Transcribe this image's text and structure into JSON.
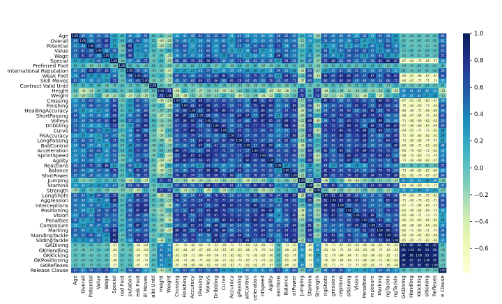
{
  "chart_data": {
    "type": "heatmap",
    "title": "",
    "xlabel": "",
    "ylabel": "",
    "labels": [
      "Age",
      "Overall",
      "Potential",
      "Value",
      "Wage",
      "Special",
      "Preferred Foot",
      "International Reputation",
      "Weak Foot",
      "Skill Moves",
      "Contract Valid Until",
      "Height",
      "Weight",
      "Crossing",
      "Finishing",
      "HeadingAccuracy",
      "ShortPassing",
      "Volleys",
      "Dribbling",
      "Curve",
      "FKAccuracy",
      "LongPassing",
      "BallControl",
      "Acceleration",
      "SprintSpeed",
      "Agility",
      "Reactions",
      "Balance",
      "ShotPower",
      "Jumping",
      "Stamina",
      "Strength",
      "LongShots",
      "Aggression",
      "Interceptions",
      "Positioning",
      "Vision",
      "Penalties",
      "Composure",
      "Marking",
      "StandingTackle",
      "SlidingTackle",
      "GKDiving",
      "GKHandling",
      "GKKicking",
      "GKPositioning",
      "GKReflexes",
      "Release Clause"
    ],
    "x_tick_labels": [
      "Age",
      "Overall",
      "Potential",
      "Value",
      "Wage",
      "Special",
      "red Foot",
      "putation",
      "eak Foot",
      "ill Moves",
      "alid Until",
      "Height",
      "Weight",
      "Crossing",
      "Finishing",
      "Accuracy",
      "tPassing",
      "Volleys",
      "Dribbling",
      "Curve",
      "Accuracy",
      "gPassing",
      "allControl",
      "celeration",
      "ntSpeed",
      "Agility",
      "eactions",
      "Balance",
      "otPower",
      "Jumping",
      "Stamina",
      "Strength",
      "ngShots",
      "gression",
      "ceptions",
      "sitioning",
      "Vision",
      "Penalties",
      "mposure",
      "Marking",
      "ngTackle",
      "ngTackle",
      "GKDiving",
      "Handling",
      "KKicking",
      "sitioning",
      "Reflexes",
      "e Clause"
    ],
    "colorbar": {
      "colormap": "YlGnBu",
      "ticks": [
        "1.0",
        "0.8",
        "0.6",
        "0.4",
        "0.2",
        "0.0",
        "−0.2",
        "−0.4",
        "−0.6"
      ],
      "range": [
        -0.78,
        1.0
      ]
    },
    "annotated": true,
    "annotation_format": "2 decimals"
  }
}
